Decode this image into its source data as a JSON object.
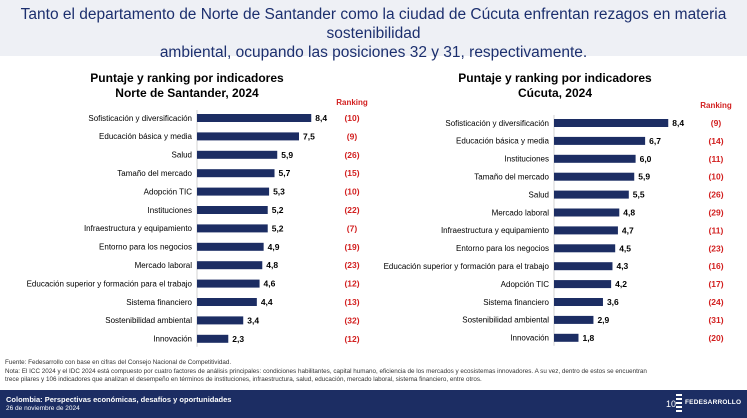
{
  "header": {
    "title_line1": "Tanto el departamento de Norte de Santander como la ciudad de Cúcuta enfrentan rezagos en materia sostenibilidad",
    "title_line2": "ambiental, ocupando las posiciones 32 y 31, respectivamente."
  },
  "chart_data": [
    {
      "type": "bar",
      "orientation": "horizontal",
      "title": "Puntaje y ranking por indicadores",
      "subtitle": "Norte de Santander, 2024",
      "ranking_label": "Ranking",
      "categories": [
        "Sofisticación y diversificación",
        "Educación básica y media",
        "Salud",
        "Tamaño del mercado",
        "Adopción TIC",
        "Instituciones",
        "Infraestructura y equipamiento",
        "Entorno para los negocios",
        "Mercado laboral",
        "Educación superior y formación para el trabajo",
        "Sistema financiero",
        "Sostenibilidad ambiental",
        "Innovación"
      ],
      "values": [
        8.4,
        7.5,
        5.9,
        5.7,
        5.3,
        5.2,
        5.2,
        4.9,
        4.8,
        4.6,
        4.4,
        3.4,
        2.3
      ],
      "value_labels": [
        "8,4",
        "7,5",
        "5,9",
        "5,7",
        "5,3",
        "5,2",
        "5,2",
        "4,9",
        "4,8",
        "4,6",
        "4,4",
        "3,4",
        "2,3"
      ],
      "rankings": [
        "(10)",
        "(9)",
        "(26)",
        "(15)",
        "(10)",
        "(22)",
        "(7)",
        "(19)",
        "(23)",
        "(12)",
        "(13)",
        "(32)",
        "(12)"
      ],
      "xlim": [
        0,
        10
      ],
      "color": "#1c2d63",
      "ranking_color": "#d21f1f"
    },
    {
      "type": "bar",
      "orientation": "horizontal",
      "title": "Puntaje y ranking por indicadores",
      "subtitle": "Cúcuta, 2024",
      "ranking_label": "Ranking",
      "categories": [
        "Sofisticación y diversificación",
        "Educación básica y media",
        "Instituciones",
        "Tamaño del mercado",
        "Salud",
        "Mercado laboral",
        "Infraestructura y equipamiento",
        "Entorno para los negocios",
        "Educación superior y formación para el trabajo",
        "Adopción TIC",
        "Sistema financiero",
        "Sostenibilidad ambiental",
        "Innovación"
      ],
      "values": [
        8.4,
        6.7,
        6.0,
        5.9,
        5.5,
        4.8,
        4.7,
        4.5,
        4.3,
        4.2,
        3.6,
        2.9,
        1.8
      ],
      "value_labels": [
        "8,4",
        "6,7",
        "6,0",
        "5,9",
        "5,5",
        "4,8",
        "4,7",
        "4,5",
        "4,3",
        "4,2",
        "3,6",
        "2,9",
        "1,8"
      ],
      "rankings": [
        "(9)",
        "(14)",
        "(11)",
        "(10)",
        "(26)",
        "(29)",
        "(11)",
        "(23)",
        "(16)",
        "(17)",
        "(24)",
        "(31)",
        "(20)"
      ],
      "xlim": [
        0,
        10
      ],
      "color": "#1c2d63",
      "ranking_color": "#d21f1f"
    }
  ],
  "notes": {
    "source": "Fuente: Fedesarrollo con base en cifras del Consejo Nacional de Competitividad.",
    "note_line1": "Nota: El ICC 2024 y el IDC 2024 está compuesto por cuatro factores de análisis principales: condiciones habilitantes, capital humano, eficiencia de los mercados y ecosistemas innovadores. A su vez, dentro de estos se encuentran",
    "note_line2": "trece pilares y 106 indicadores que analizan el desempeño en términos de instituciones, infraestructura, salud, educación, mercado laboral, sistema financiero, entre otros."
  },
  "footer": {
    "title": "Colombia: Perspectivas económicas, desafíos y oportunidades",
    "date": "26 de noviembre de 2024",
    "page": "10",
    "logo_text": "FEDESARROLLO"
  }
}
